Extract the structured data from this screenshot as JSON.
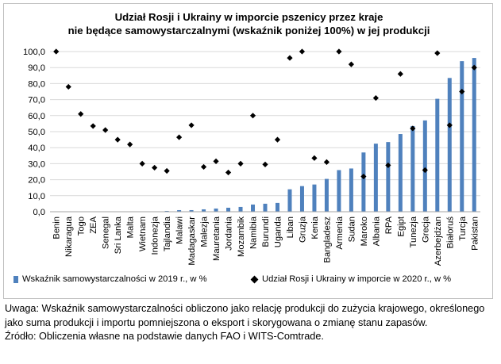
{
  "title_line1": "Udział Rosji i Ukrainy w imporcie pszenicy przez kraje",
  "title_line2": "nie będące samowystarczalnymi (wskaźnik poniżej 100%) w jej produkcji",
  "notes": {
    "note1": "Uwaga: Wskaźnik samowystarczalności obliczono jako relację produkcji do zużycia krajowego, określonego jako suma produkcji i importu pomniejszona o eksport i skorygowana o zmianę stanu zapasów.",
    "source": "Źródło: Obliczenia własne na podstawie danych FAO i WITS-Comtrade."
  },
  "colors": {
    "bar": "#4f81bd",
    "marker": "#000000",
    "grid": "#d9d9d9"
  },
  "chart_data": {
    "type": "bar",
    "title": "Udział Rosji i Ukrainy w imporcie pszenicy przez kraje nie będące samowystarczalnymi (wskaźnik poniżej 100%) w jej produkcji",
    "ylim": [
      0,
      100
    ],
    "yticks": [
      "0,0",
      "10,0",
      "20,0",
      "30,0",
      "40,0",
      "50,0",
      "60,0",
      "70,0",
      "80,0",
      "90,0",
      "100,0"
    ],
    "grid": true,
    "legend_position": "bottom",
    "categories": [
      "Benin",
      "Nikaragua",
      "Togo",
      "ZEA",
      "Senegal",
      "Sri Lanka",
      "Malta",
      "Wietnam",
      "Indonezja",
      "Tajlandia",
      "Malawi",
      "Madagaskar",
      "Malezja",
      "Mauretania",
      "Jordania",
      "Mozambik",
      "Namibia",
      "Burundi",
      "Uganda",
      "Liban",
      "Gruzja",
      "Kenia",
      "Bangladesz",
      "Armenia",
      "Sudan",
      "Maroko",
      "Albania",
      "RPA",
      "Egipt",
      "Tunezja",
      "Grecja",
      "Azerbejdżan",
      "Białoruś",
      "Turcja",
      "Pakistan"
    ],
    "series": [
      {
        "name": "Wskaźnik samowystarczalności w 2019 r., w %",
        "kind": "bar",
        "values": [
          0,
          0,
          0,
          0,
          0,
          0,
          0,
          0,
          0,
          0.5,
          1,
          1,
          1.5,
          2,
          2.5,
          3,
          4.5,
          5,
          5.5,
          14,
          16,
          17,
          20.5,
          26,
          27,
          37,
          42.5,
          43.5,
          48.5,
          53.5,
          57,
          70.5,
          83.5,
          94,
          96
        ]
      },
      {
        "name": "Udział Rosji i Ukrainy w imporcie w 2020 r., w %",
        "kind": "marker",
        "values": [
          100,
          78,
          61,
          53.5,
          51,
          45,
          42,
          30,
          27.5,
          25.5,
          46.5,
          54,
          28,
          31.5,
          24.5,
          30,
          60,
          29.5,
          45,
          96,
          100,
          33.5,
          31,
          100,
          92,
          22,
          71,
          29,
          86,
          52,
          26,
          99,
          54,
          75,
          90
        ]
      }
    ]
  }
}
